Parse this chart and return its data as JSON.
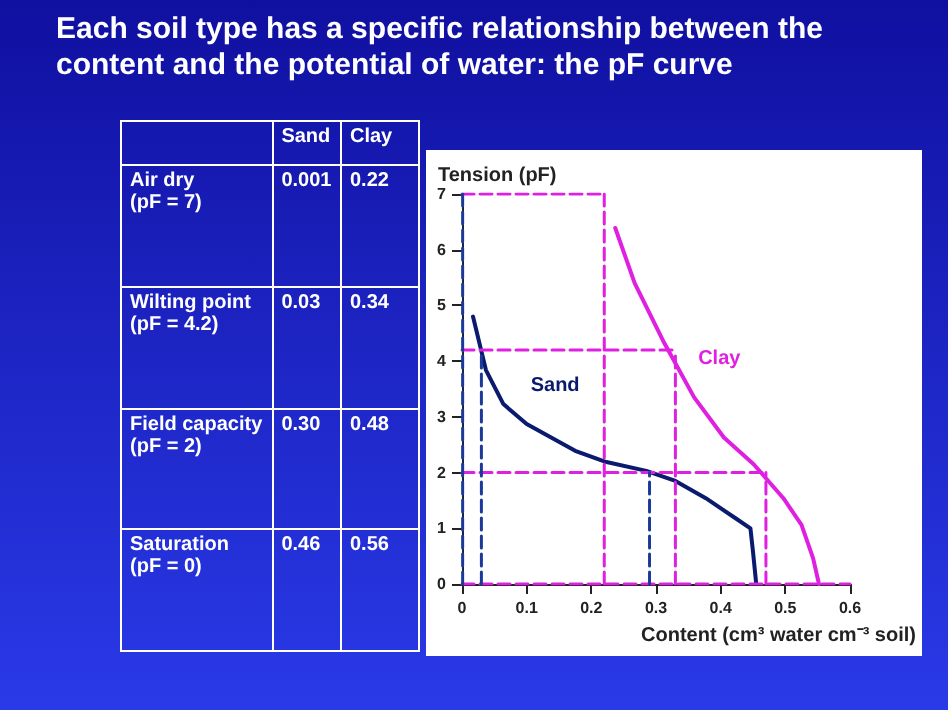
{
  "chart_data": [
    {
      "type": "other",
      "title": "Each soil type has a specific relationship between the content and the potential of water: the pF curve",
      "annotations": [
        "Sand",
        "Clay",
        "Air dry\n(pF = 7)",
        "0.001",
        "0.22",
        "Wilting point\n(pF = 4.2)",
        "0.03",
        "0.34",
        "Field capacity\n(pF = 2)",
        "0.30",
        "0.48",
        "Saturation\n(pF = 0)",
        "0.46",
        "0.56"
      ]
    },
    {
      "type": "line",
      "xlabel": "Content (cm³ water cm⁻³ soil)",
      "ylabel": "Tension (pF)",
      "xlim": [
        0,
        0.6
      ],
      "ylim": [
        0,
        7
      ],
      "xticks": [
        0,
        0.1,
        0.2,
        0.3,
        0.4,
        0.5,
        0.6
      ],
      "yticks": [
        0,
        1,
        2,
        3,
        4,
        5,
        6,
        7
      ],
      "marker": "none",
      "series": [
        {
          "name": "Sand",
          "color": "#0a1a6e",
          "x": [
            0.017,
            0.037,
            0.064,
            0.1,
            0.175,
            0.22,
            0.285,
            0.33,
            0.377,
            0.423,
            0.446,
            0.45,
            0.455
          ],
          "values": [
            4.8,
            3.84,
            3.23,
            2.87,
            2.39,
            2.2,
            2.03,
            1.85,
            1.54,
            1.18,
            1.0,
            0.58,
            0
          ]
        },
        {
          "name": "Clay",
          "color": "#e020e0",
          "x": [
            0.237,
            0.267,
            0.313,
            0.359,
            0.405,
            0.451,
            0.497,
            0.525,
            0.543,
            0.552
          ],
          "values": [
            6.39,
            5.4,
            4.32,
            3.35,
            2.63,
            2.15,
            1.54,
            1.06,
            0.46,
            0
          ]
        },
        {
          "color": "#e020e0",
          "line_style": "dashed",
          "x": [
            0,
            0.22
          ],
          "values": [
            7,
            7
          ]
        },
        {
          "color": "#e020e0",
          "line_style": "dashed",
          "x": [
            0,
            0.33
          ],
          "values": [
            4.2,
            4.2
          ]
        },
        {
          "color": "#e020e0",
          "line_style": "dashed",
          "x": [
            0,
            0.47
          ],
          "values": [
            2,
            2
          ]
        },
        {
          "color": "#e020e0",
          "line_style": "dashed",
          "x": [
            0,
            0.6
          ],
          "values": [
            0,
            0
          ]
        },
        {
          "color": "#e020e0",
          "line_style": "dashed",
          "x": [
            0.22,
            0.22
          ],
          "values": [
            0,
            7
          ]
        },
        {
          "color": "#e020e0",
          "line_style": "dashed",
          "x": [
            0.33,
            0.33
          ],
          "values": [
            0,
            4.2
          ]
        },
        {
          "color": "#e020e0",
          "line_style": "dashed",
          "x": [
            0.47,
            0.47
          ],
          "values": [
            0,
            2
          ]
        },
        {
          "color": "#1a3a9a",
          "line_style": "dashed",
          "x": [
            0.001,
            0.001
          ],
          "values": [
            0,
            7
          ]
        },
        {
          "color": "#1a3a9a",
          "line_style": "dashed",
          "x": [
            0.03,
            0.03
          ],
          "values": [
            0,
            4.2
          ]
        },
        {
          "color": "#1a3a9a",
          "line_style": "dashed",
          "x": [
            0.29,
            0.29
          ],
          "values": [
            0,
            2
          ]
        }
      ]
    }
  ]
}
